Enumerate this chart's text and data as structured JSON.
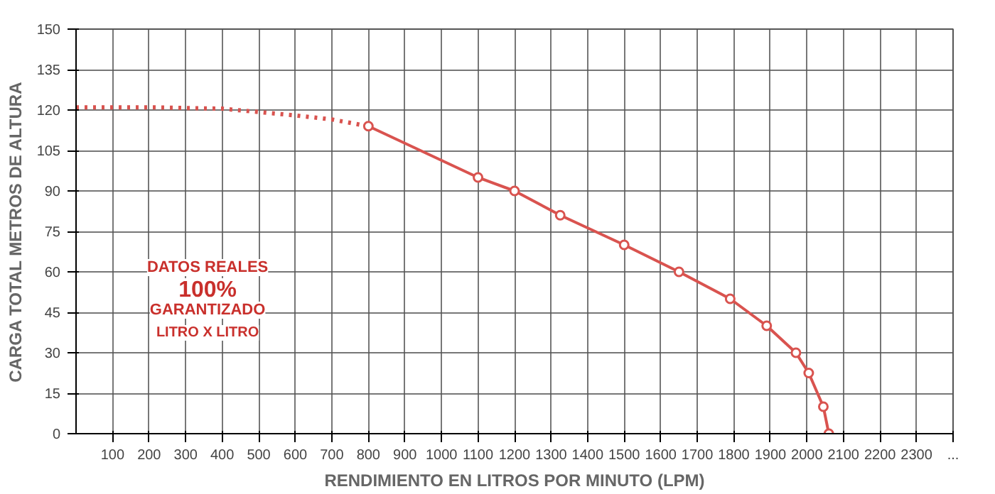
{
  "chart_data": {
    "type": "line",
    "xlabel": "RENDIMIENTO EN LITROS POR MINUTO (LPM)",
    "ylabel": "CARGA TOTAL METROS DE ALTURA",
    "xlim": [
      0,
      2400
    ],
    "ylim": [
      0,
      150
    ],
    "xticks": [
      100,
      200,
      300,
      400,
      500,
      600,
      700,
      800,
      900,
      1000,
      1100,
      1200,
      1300,
      1400,
      1500,
      1600,
      1700,
      1800,
      1900,
      2000,
      2100,
      2200,
      2300,
      {
        "value": 2400,
        "label": "..."
      }
    ],
    "yticks": [
      0,
      15,
      30,
      45,
      60,
      75,
      90,
      105,
      120,
      135,
      150
    ],
    "grid": true,
    "series": [
      {
        "color": "#d9534f",
        "line_style": "dotted",
        "marker": "none",
        "x": [
          0,
          200,
          400,
          600,
          700,
          800
        ],
        "values": [
          121,
          121,
          120.5,
          118,
          116.5,
          114
        ]
      },
      {
        "color": "#d9534f",
        "line_style": "solid",
        "marker": "circle",
        "x": [
          800,
          1100,
          1200,
          1325,
          1500,
          1650,
          1790,
          1890,
          1970,
          2005,
          2045,
          2060
        ],
        "values": [
          114,
          95,
          90,
          81,
          70,
          60,
          50,
          40,
          30,
          22.5,
          10,
          0
        ]
      }
    ],
    "annotations": [
      "DATOS REALES",
      "100%",
      "GARANTIZADO",
      "LITRO X LITRO"
    ]
  }
}
